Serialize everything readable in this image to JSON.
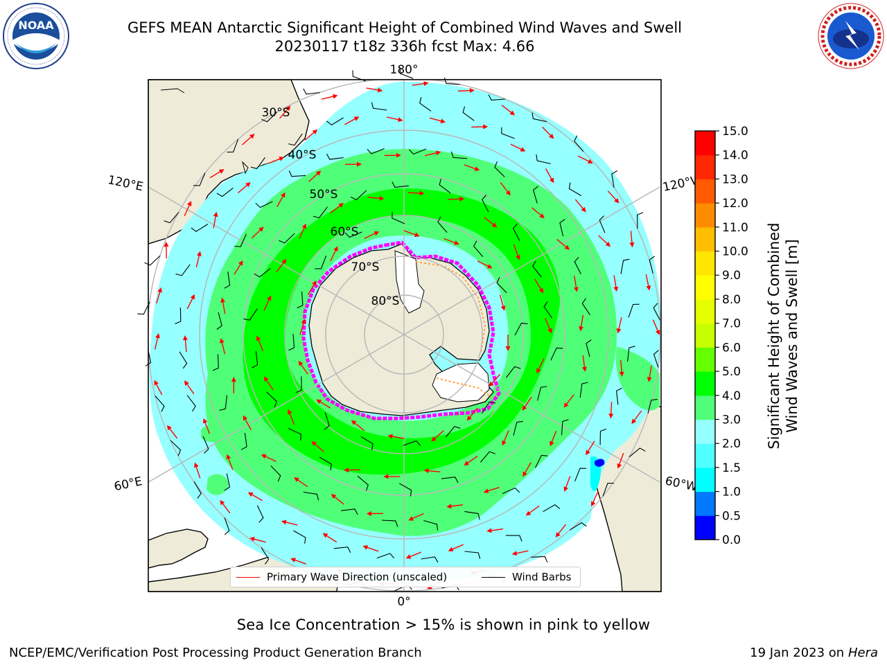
{
  "header": {
    "title_line1": "GEFS MEAN Antarctic Significant Height of Combined Wind Waves and Swell",
    "title_line2": "20230117 t18z 336h fcst   Max: 4.66"
  },
  "logos": {
    "left": {
      "icon": "noaa-logo-icon",
      "text": "NOAA",
      "ring_text": "NATIONAL OCEANIC AND ATMOSPHERIC ADMINISTRATION · U.S. DEPARTMENT OF COMMERCE"
    },
    "right": {
      "icon": "nws-logo-icon",
      "ring_text": "NATIONAL WEATHER SERVICE"
    }
  },
  "map": {
    "projection": "south-polar-stereographic",
    "longitude_labels": {
      "top": "180°",
      "bottom": "0°",
      "upper_left": "120°E",
      "upper_right": "120°W",
      "lower_left": "60°E",
      "lower_right": "60°W"
    },
    "latitude_labels": [
      "30°S",
      "40°S",
      "50°S",
      "60°S",
      "70°S",
      "80°S"
    ],
    "colors": {
      "land": "#eeecd9",
      "ocean_low": "#96ffff",
      "ocean_mid": "#50ff78",
      "ocean_high": "#00ff00",
      "sea_ice": "#ff00ff",
      "grid": "#b8b8b8"
    }
  },
  "legend": {
    "primary_wave": "Primary Wave Direction (unscaled)",
    "wind_barbs": "Wind Barbs",
    "primary_wave_color": "#ff0000",
    "wind_barb_color": "#000000"
  },
  "colorbar": {
    "label_line1": "Significant Height of Combined",
    "label_line2": "Wind Waves and Swell [m]",
    "ticks": [
      "0.0",
      "0.5",
      "1.0",
      "1.5",
      "2.0",
      "3.0",
      "4.0",
      "5.0",
      "6.0",
      "7.0",
      "8.0",
      "9.0",
      "10.0",
      "11.0",
      "12.0",
      "13.0",
      "14.0",
      "15.0"
    ],
    "colors": [
      "#0000ff",
      "#0078ff",
      "#00ffff",
      "#50ffff",
      "#96ffff",
      "#50ff78",
      "#00ff00",
      "#64ff00",
      "#c8ff00",
      "#e6ff00",
      "#ffff00",
      "#ffe600",
      "#ffbe00",
      "#ff8c00",
      "#ff5a00",
      "#ff2800",
      "#ff0000"
    ]
  },
  "notes": {
    "sea_ice": "Sea Ice Concentration > 15% is shown in pink to yellow"
  },
  "footer": {
    "left": "NCEP/EMC/Verification Post Processing Product Generation Branch",
    "right_prefix": "19 Jan 2023 on ",
    "right_host": "Hera"
  }
}
